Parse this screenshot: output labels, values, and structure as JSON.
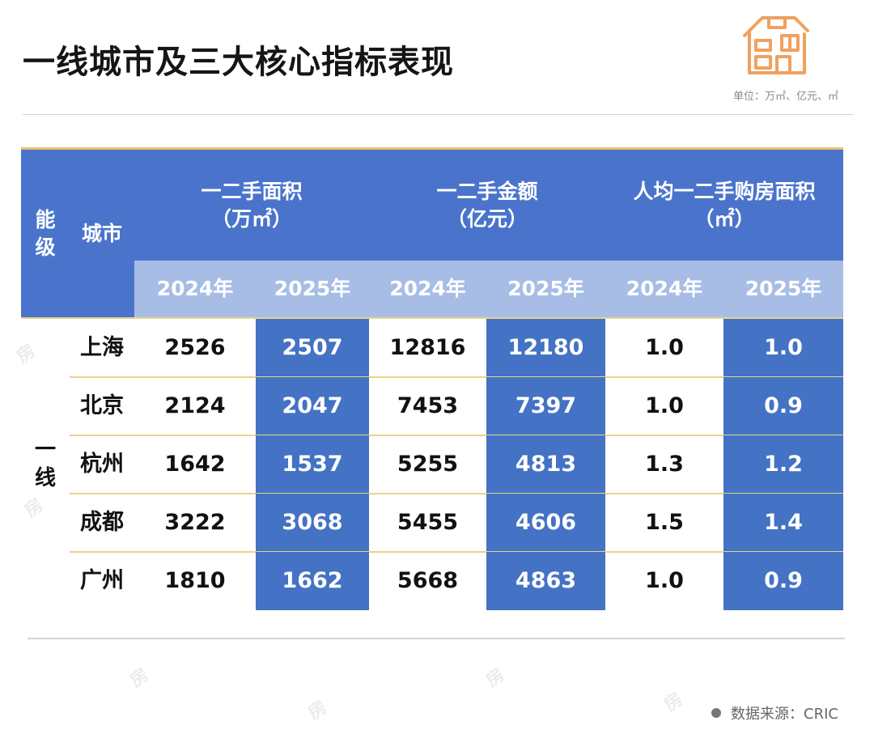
{
  "title": "一线城市及三大核心指标表现",
  "unit_note": "单位：万㎡、亿元、㎡",
  "source": "数据来源：CRIC",
  "logo": "house-icon",
  "colors": {
    "header_blue": "#4a74cc",
    "subheader_blue": "#a7bde6",
    "highlight_blue": "#4472c4",
    "gold_line": "#e8d38a",
    "logo_orange": "#f0a15e"
  },
  "chart_data": {
    "type": "table",
    "header": {
      "tier_label": "能\n级",
      "city_label": "城市",
      "groups": [
        {
          "name": "一二手面积",
          "unit": "（万㎡）"
        },
        {
          "name": "一二手金额",
          "unit": "（亿元）"
        },
        {
          "name": "人均一二手购房面积",
          "unit": "（㎡）"
        }
      ],
      "years": [
        "2024年",
        "2025年",
        "2024年",
        "2025年",
        "2024年",
        "2025年"
      ]
    },
    "tier": "一\n线",
    "rows": [
      {
        "city": "上海",
        "values": [
          "2526",
          "2507",
          "12816",
          "12180",
          "1.0",
          "1.0"
        ]
      },
      {
        "city": "北京",
        "values": [
          "2124",
          "2047",
          "7453",
          "7397",
          "1.0",
          "0.9"
        ]
      },
      {
        "city": "杭州",
        "values": [
          "1642",
          "1537",
          "5255",
          "4813",
          "1.3",
          "1.2"
        ]
      },
      {
        "city": "成都",
        "values": [
          "3222",
          "3068",
          "5455",
          "4606",
          "1.5",
          "1.4"
        ]
      },
      {
        "city": "广州",
        "values": [
          "1810",
          "1662",
          "5668",
          "4863",
          "1.0",
          "0.9"
        ]
      }
    ]
  }
}
